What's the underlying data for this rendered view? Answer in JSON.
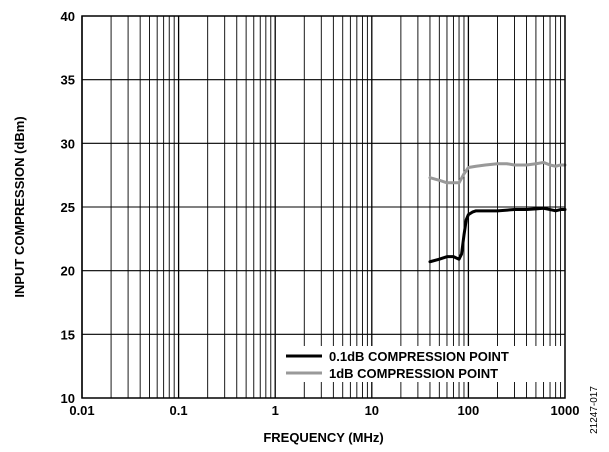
{
  "chart_data": {
    "type": "line",
    "title": "",
    "xlabel": "FREQUENCY (MHz)",
    "ylabel": "INPUT COMPRESSION (dBm)",
    "xscale": "log",
    "xlim": [
      0.01,
      1000
    ],
    "ylim": [
      10,
      40
    ],
    "x_ticks": [
      0.01,
      0.1,
      1,
      10,
      100,
      1000
    ],
    "x_tick_labels": [
      "0.01",
      "0.1",
      "1",
      "10",
      "100",
      "1000"
    ],
    "y_ticks": [
      10,
      15,
      20,
      25,
      30,
      35,
      40
    ],
    "y_tick_labels": [
      "10",
      "15",
      "20",
      "25",
      "30",
      "35",
      "40"
    ],
    "grid": true,
    "legend_position": "bottom-right",
    "figure_id": "21247-017",
    "series": [
      {
        "name": "0.1dB COMPRESSION POINT",
        "color": "#000000",
        "x": [
          40,
          50,
          60,
          70,
          80,
          85,
          90,
          95,
          100,
          110,
          120,
          150,
          200,
          300,
          400,
          500,
          600,
          700,
          800,
          900,
          1000
        ],
        "y": [
          20.7,
          20.9,
          21.1,
          21.1,
          20.9,
          21.3,
          22.8,
          24.0,
          24.4,
          24.6,
          24.7,
          24.7,
          24.7,
          24.8,
          24.8,
          24.85,
          24.9,
          24.8,
          24.7,
          24.8,
          24.8
        ]
      },
      {
        "name": "1dB COMPRESSION POINT",
        "color": "#999999",
        "x": [
          40,
          50,
          60,
          70,
          80,
          90,
          100,
          120,
          150,
          200,
          250,
          300,
          400,
          500,
          600,
          700,
          800,
          900,
          1000
        ],
        "y": [
          27.3,
          27.1,
          26.9,
          26.9,
          26.9,
          27.6,
          28.1,
          28.2,
          28.3,
          28.4,
          28.4,
          28.3,
          28.3,
          28.4,
          28.5,
          28.3,
          28.2,
          28.3,
          28.3
        ]
      }
    ]
  }
}
